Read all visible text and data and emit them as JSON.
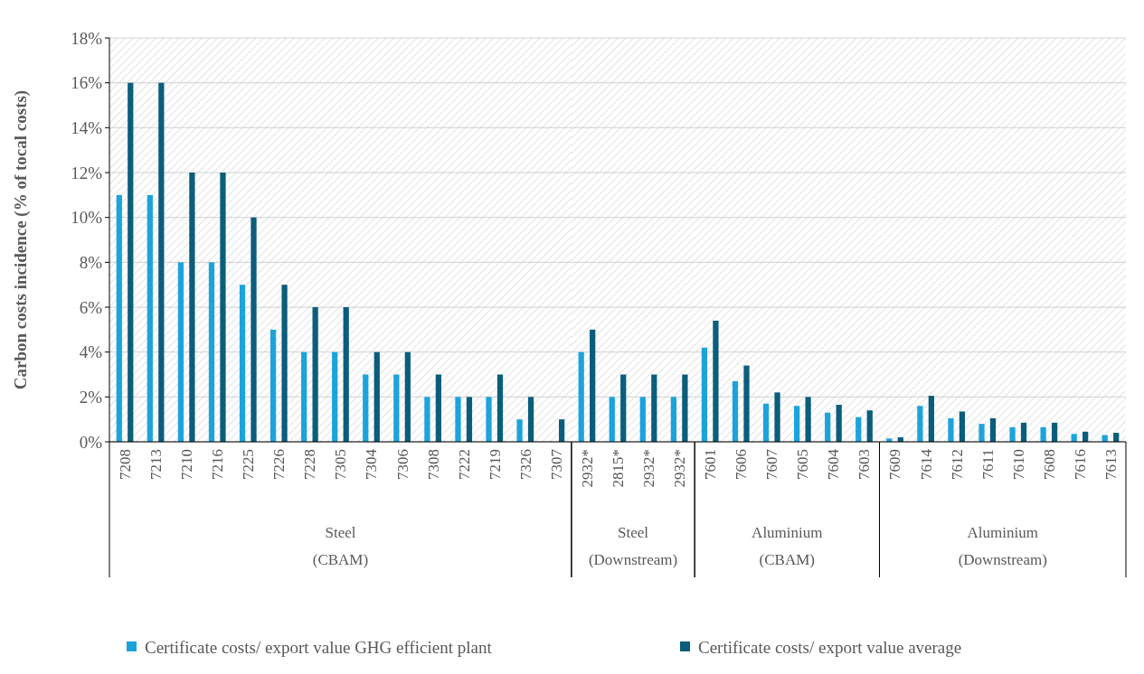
{
  "chart_data": [
    {
      "type": "bar",
      "ylabel": "Carbon costs incidence (% of tocal costs)",
      "xlabel": "Steel (CBAM)",
      "categories": [
        "7208",
        "7213",
        "7210",
        "7216",
        "7225",
        "7226",
        "7228",
        "7305",
        "7304",
        "7306",
        "7308",
        "7222",
        "7219",
        "7326",
        "7307"
      ],
      "series": [
        {
          "name": "Certificate costs/ export value GHG efficient plant",
          "color": "#1ca3dc",
          "values": [
            11,
            11,
            8,
            8,
            7,
            5,
            4,
            4,
            3,
            3,
            2,
            2,
            2,
            1,
            null
          ]
        },
        {
          "name": "Certificate costs/ export value average",
          "color": "#0b5d7c",
          "values": [
            16,
            16,
            12,
            12,
            10,
            7,
            6,
            6,
            4,
            4,
            3,
            2,
            3,
            2,
            1
          ]
        }
      ],
      "ylim": [
        0,
        18
      ],
      "yticks": [
        {
          "value": 0,
          "label": "0%"
        },
        {
          "value": 2,
          "label": "2%"
        },
        {
          "value": 4,
          "label": "4%"
        },
        {
          "value": 6,
          "label": "6%"
        },
        {
          "value": 8,
          "label": "8%"
        },
        {
          "value": 10,
          "label": "10%"
        },
        {
          "value": 12,
          "label": "12%"
        },
        {
          "value": 14,
          "label": "14%"
        },
        {
          "value": 16,
          "label": "16%"
        },
        {
          "value": 18,
          "label": "18%"
        }
      ],
      "grid": "y",
      "legend": "bottom"
    },
    {
      "type": "bar",
      "xlabel": "Steel (Downstream)",
      "categories": [
        "2932*",
        "2815*",
        "2932*",
        "2932*"
      ],
      "series": [
        {
          "color": "#1ca3dc",
          "values": [
            4,
            2,
            2,
            2
          ]
        },
        {
          "color": "#0b5d7c",
          "values": [
            5,
            3,
            3,
            3
          ]
        }
      ],
      "ylim": [
        0,
        18
      ],
      "yticks": [
        0,
        2,
        4,
        6,
        8,
        10,
        12,
        14,
        16,
        18
      ],
      "grid": "y",
      "tick_labels": "x"
    },
    {
      "type": "bar",
      "xlabel": "Aluminium (CBAM)",
      "categories": [
        "7601",
        "7606",
        "7607",
        "7605",
        "7604",
        "7603"
      ],
      "series": [
        {
          "color": "#1ca3dc",
          "values": [
            4.2,
            2.7,
            1.7,
            1.6,
            1.3,
            1.1
          ]
        },
        {
          "color": "#0b5d7c",
          "values": [
            5.4,
            3.4,
            2.2,
            2.0,
            1.65,
            1.4
          ]
        }
      ],
      "ylim": [
        0,
        18
      ],
      "yticks": [
        0,
        2,
        4,
        6,
        8,
        10,
        12,
        14,
        16,
        18
      ],
      "grid": "y",
      "tick_labels": "x"
    },
    {
      "type": "bar",
      "xlabel": "Aluminium (Downstream)",
      "categories": [
        "7609",
        "7614",
        "7612",
        "7611",
        "7610",
        "7608",
        "7616",
        "7613"
      ],
      "series": [
        {
          "color": "#1ca3dc",
          "values": [
            0.15,
            1.6,
            1.05,
            0.8,
            0.65,
            0.65,
            0.35,
            0.3
          ]
        },
        {
          "color": "#0b5d7c",
          "values": [
            0.2,
            2.05,
            1.35,
            1.05,
            0.85,
            0.85,
            0.45,
            0.4
          ]
        }
      ],
      "ylim": [
        0,
        18
      ],
      "yticks": [
        0,
        2,
        4,
        6,
        8,
        10,
        12,
        14,
        16,
        18
      ],
      "grid": "y",
      "tick_labels": "x"
    }
  ]
}
